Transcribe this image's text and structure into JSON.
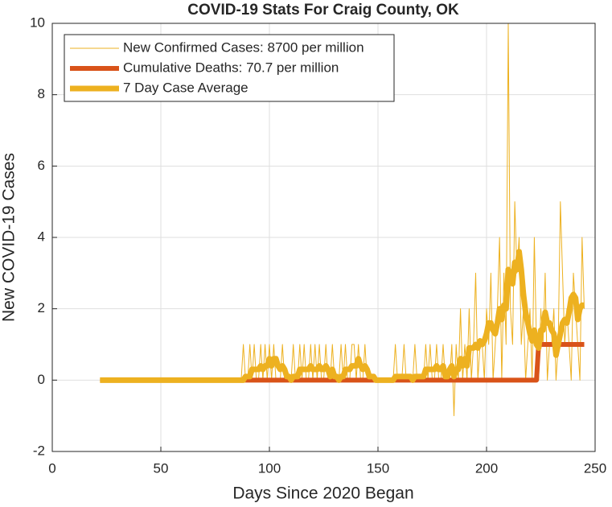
{
  "chart_data": {
    "type": "line",
    "title": "COVID-19 Stats For Craig County, OK",
    "x_label": "Days Since 2020 Began",
    "y_label": "New COVID-19 Cases",
    "xlim": [
      0,
      250
    ],
    "ylim": [
      -2,
      10
    ],
    "xticks": [
      0,
      50,
      100,
      150,
      200,
      250
    ],
    "yticks": [
      -2,
      0,
      2,
      4,
      6,
      8,
      10
    ],
    "grid": true,
    "legend": "upper left",
    "x": [
      22,
      23,
      24,
      25,
      26,
      27,
      28,
      29,
      30,
      31,
      32,
      33,
      34,
      35,
      36,
      37,
      38,
      39,
      40,
      41,
      42,
      43,
      44,
      45,
      46,
      47,
      48,
      49,
      50,
      51,
      52,
      53,
      54,
      55,
      56,
      57,
      58,
      59,
      60,
      61,
      62,
      63,
      64,
      65,
      66,
      67,
      68,
      69,
      70,
      71,
      72,
      73,
      74,
      75,
      76,
      77,
      78,
      79,
      80,
      81,
      82,
      83,
      84,
      85,
      86,
      87,
      88,
      89,
      90,
      91,
      92,
      93,
      94,
      95,
      96,
      97,
      98,
      99,
      100,
      101,
      102,
      103,
      104,
      105,
      106,
      107,
      108,
      109,
      110,
      111,
      112,
      113,
      114,
      115,
      116,
      117,
      118,
      119,
      120,
      121,
      122,
      123,
      124,
      125,
      126,
      127,
      128,
      129,
      130,
      131,
      132,
      133,
      134,
      135,
      136,
      137,
      138,
      139,
      140,
      141,
      142,
      143,
      144,
      145,
      146,
      147,
      148,
      149,
      150,
      151,
      152,
      153,
      154,
      155,
      156,
      157,
      158,
      159,
      160,
      161,
      162,
      163,
      164,
      165,
      166,
      167,
      168,
      169,
      170,
      171,
      172,
      173,
      174,
      175,
      176,
      177,
      178,
      179,
      180,
      181,
      182,
      183,
      184,
      185,
      186,
      187,
      188,
      189,
      190,
      191,
      192,
      193,
      194,
      195,
      196,
      197,
      198,
      199,
      200,
      201,
      202,
      203,
      204,
      205,
      206,
      207,
      208,
      209,
      210,
      211,
      212,
      213,
      214,
      215,
      216,
      217,
      218,
      219,
      220,
      221,
      222,
      223,
      224,
      225,
      226,
      227,
      228,
      229,
      230,
      231,
      232,
      233,
      234,
      235,
      236,
      237,
      238,
      239,
      240,
      241,
      242,
      243,
      244,
      245
    ],
    "series": [
      {
        "name": "New Confirmed Cases: 8700 per million",
        "color": "#EDB120",
        "width": 1,
        "values": [
          0,
          0,
          0,
          0,
          0,
          0,
          0,
          0,
          0,
          0,
          0,
          0,
          0,
          0,
          0,
          0,
          0,
          0,
          0,
          0,
          0,
          0,
          0,
          0,
          0,
          0,
          0,
          0,
          0,
          0,
          0,
          0,
          0,
          0,
          0,
          0,
          0,
          0,
          0,
          0,
          0,
          0,
          0,
          0,
          0,
          0,
          0,
          0,
          0,
          0,
          0,
          0,
          0,
          0,
          0,
          0,
          0,
          0,
          0,
          0,
          0,
          0,
          0,
          0,
          0,
          0,
          1,
          0,
          0,
          1,
          0,
          1,
          0,
          0,
          1,
          0,
          1,
          0,
          1,
          0,
          1,
          0,
          0,
          0,
          1,
          0,
          0,
          0,
          0,
          1,
          0,
          0,
          1,
          0,
          1,
          0,
          0,
          1,
          0,
          1,
          0,
          1,
          0,
          0,
          1,
          0,
          0,
          1,
          0,
          0,
          0,
          1,
          0,
          1,
          0,
          0,
          1,
          1,
          0,
          1,
          0,
          0,
          1,
          0,
          0,
          0,
          0,
          0,
          0,
          0,
          0,
          0,
          0,
          0,
          0,
          0,
          1,
          0,
          0,
          0,
          1,
          0,
          0,
          0,
          0,
          1,
          0,
          0,
          0,
          0,
          1,
          0,
          1,
          0,
          0,
          1,
          0,
          0,
          1,
          0,
          0,
          0,
          1,
          -1,
          1,
          0,
          2,
          0,
          1,
          0,
          2,
          0,
          1,
          3,
          0,
          1,
          1,
          0,
          2,
          1,
          3,
          0,
          1,
          2,
          4,
          0,
          3,
          1,
          10,
          2,
          1,
          5,
          3,
          4,
          1,
          2,
          0,
          1,
          2,
          0,
          4,
          1,
          0,
          2,
          1,
          3,
          0,
          1,
          1,
          2,
          0,
          1,
          5,
          3,
          1,
          2,
          1,
          0,
          3,
          2,
          1,
          0,
          4,
          2
        ]
      },
      {
        "name": "Cumulative Deaths: 70.7 per million",
        "color": "#D95319",
        "width": 6,
        "values": [
          0,
          0,
          0,
          0,
          0,
          0,
          0,
          0,
          0,
          0,
          0,
          0,
          0,
          0,
          0,
          0,
          0,
          0,
          0,
          0,
          0,
          0,
          0,
          0,
          0,
          0,
          0,
          0,
          0,
          0,
          0,
          0,
          0,
          0,
          0,
          0,
          0,
          0,
          0,
          0,
          0,
          0,
          0,
          0,
          0,
          0,
          0,
          0,
          0,
          0,
          0,
          0,
          0,
          0,
          0,
          0,
          0,
          0,
          0,
          0,
          0,
          0,
          0,
          0,
          0,
          0,
          0,
          0,
          0,
          0,
          0,
          0,
          0,
          0,
          0,
          0,
          0,
          0,
          0,
          0,
          0,
          0,
          0,
          0,
          0,
          0,
          0,
          0,
          0,
          0,
          0,
          0,
          0,
          0,
          0,
          0,
          0,
          0,
          0,
          0,
          0,
          0,
          0,
          0,
          0,
          0,
          0,
          0,
          0,
          0,
          0,
          0,
          0,
          0,
          0,
          0,
          0,
          0,
          0,
          0,
          0,
          0,
          0,
          0,
          0,
          0,
          0,
          0,
          0,
          0,
          0,
          0,
          0,
          0,
          0,
          0,
          0,
          0,
          0,
          0,
          0,
          0,
          0,
          0,
          0,
          0,
          0,
          0,
          0,
          0,
          0,
          0,
          0,
          0,
          0,
          0,
          0,
          0,
          0,
          0,
          0,
          0,
          0,
          0,
          0,
          0,
          0,
          0,
          0,
          0,
          0,
          0,
          0,
          0,
          0,
          0,
          0,
          0,
          0,
          0,
          0,
          0,
          0,
          0,
          0,
          0,
          0,
          0,
          0,
          0,
          0,
          0,
          0,
          0,
          0,
          0,
          0,
          0,
          0,
          0,
          0,
          0,
          1,
          1,
          1,
          1,
          1,
          1,
          1,
          1,
          1,
          1,
          1,
          1,
          1,
          1,
          1,
          1,
          1,
          1,
          1,
          1,
          1,
          1
        ]
      },
      {
        "name": "7 Day Case Average",
        "color": "#EDB120",
        "width": 7,
        "values": [
          0,
          0,
          0,
          0,
          0,
          0,
          0,
          0,
          0,
          0,
          0,
          0,
          0,
          0,
          0,
          0,
          0,
          0,
          0,
          0,
          0,
          0,
          0,
          0,
          0,
          0,
          0,
          0,
          0,
          0,
          0,
          0,
          0,
          0,
          0,
          0,
          0,
          0,
          0,
          0,
          0,
          0,
          0,
          0,
          0,
          0,
          0,
          0,
          0,
          0,
          0,
          0,
          0,
          0,
          0,
          0,
          0,
          0,
          0,
          0,
          0,
          0,
          0,
          0,
          0,
          0,
          0,
          0.1,
          0.1,
          0.1,
          0.3,
          0.3,
          0.3,
          0.3,
          0.4,
          0.3,
          0.4,
          0.4,
          0.6,
          0.4,
          0.6,
          0.6,
          0.4,
          0.3,
          0.4,
          0.3,
          0.1,
          0.1,
          0,
          0.1,
          0.1,
          0.1,
          0.3,
          0.3,
          0.3,
          0.3,
          0.3,
          0.4,
          0.3,
          0.3,
          0.3,
          0.4,
          0.3,
          0.3,
          0.4,
          0.3,
          0.1,
          0.3,
          0.1,
          0.1,
          0,
          0.1,
          0.1,
          0.3,
          0.3,
          0.3,
          0.4,
          0.4,
          0.4,
          0.6,
          0.4,
          0.3,
          0.4,
          0.3,
          0.1,
          0.1,
          0.1,
          0,
          0,
          0,
          0,
          0,
          0,
          0,
          0,
          0,
          0.1,
          0.1,
          0.1,
          0.1,
          0.1,
          0.1,
          0.1,
          0.1,
          0,
          0.1,
          0.1,
          0.1,
          0.1,
          0.1,
          0.3,
          0.3,
          0.3,
          0.3,
          0.3,
          0.4,
          0.3,
          0.3,
          0.4,
          0.1,
          0.1,
          0.3,
          0.4,
          0.1,
          0.3,
          0.3,
          0.6,
          0.4,
          0.6,
          0.4,
          0.9,
          0.9,
          0.9,
          1.0,
          0.9,
          1.1,
          1.0,
          1.1,
          1.3,
          1.6,
          1.6,
          1.4,
          1.3,
          1.6,
          2.0,
          1.7,
          2.1,
          2.0,
          3.1,
          2.9,
          2.7,
          3.3,
          3.1,
          3.6,
          3.1,
          2.4,
          1.9,
          1.6,
          1.3,
          1.1,
          1.4,
          1.0,
          0.9,
          1.4,
          1.4,
          1.9,
          1.6,
          1.6,
          1.4,
          1.3,
          0.7,
          1.0,
          1.3,
          1.6,
          1.7,
          1.6,
          1.9,
          2.3,
          2.4,
          2.3,
          1.7,
          2.0,
          2.1,
          2.1
        ]
      }
    ]
  }
}
